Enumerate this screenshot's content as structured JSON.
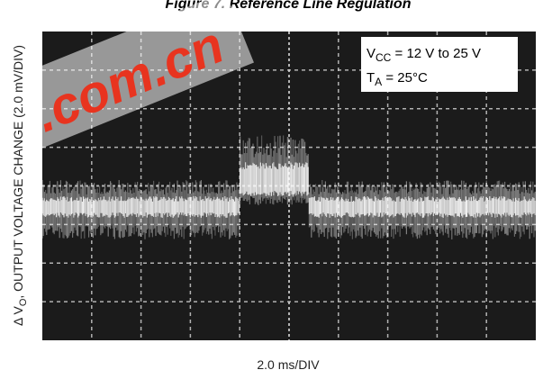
{
  "figure": {
    "title": "Figure 7. Reference Line Regulation",
    "y_label": {
      "prefix": "Δ V",
      "sub": "O",
      "rest": ", OUTPUT VOLTAGE CHANGE (2.0 mV/DIV)"
    },
    "x_label": "2.0 ms/DIV",
    "annotation": [
      {
        "main": "V",
        "sub": "CC",
        "rest": " = 12 V to 25 V"
      },
      {
        "main": "T",
        "sub": "A",
        "rest": " = 25°C"
      }
    ],
    "watermark": ".com.cn"
  }
}
